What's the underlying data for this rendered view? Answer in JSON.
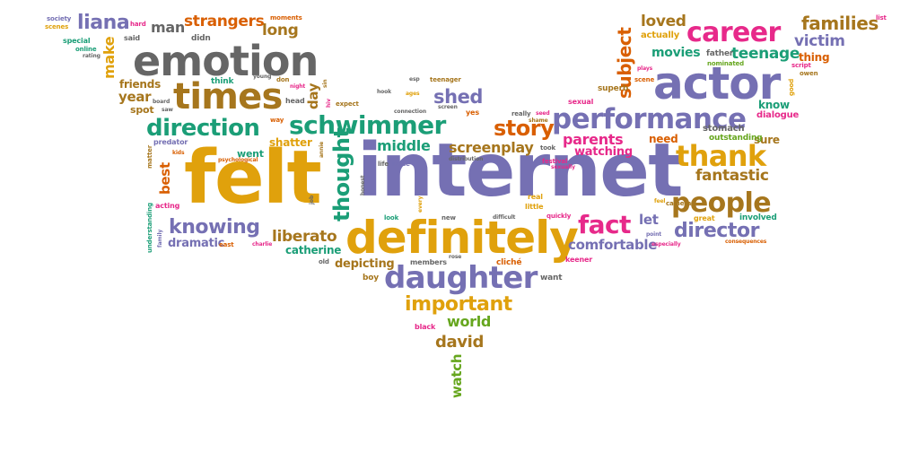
{
  "palette": {
    "gold": "#E0A10C",
    "slate": "#7570B3",
    "teal": "#1B9E77",
    "orange": "#D95F02",
    "pink": "#E7298A",
    "brown": "#A6761D",
    "gray": "#666666",
    "green": "#66A61E"
  },
  "words": [
    "internet",
    "felt",
    "definitely",
    "actor",
    "emotion",
    "times",
    "performance",
    "daughter",
    "career",
    "thank",
    "schwimmer",
    "people",
    "direction",
    "story",
    "fact",
    "knowing",
    "director",
    "thought",
    "important",
    "liana",
    "strangers",
    "families",
    "subject",
    "loved",
    "teenage",
    "victim",
    "movies",
    "long",
    "man",
    "middle",
    "screenplay",
    "parents",
    "liberato",
    "comfortable",
    "fantastic",
    "shed",
    "david",
    "watch",
    "make",
    "world",
    "year",
    "friends",
    "day",
    "best",
    "dramatic",
    "catherine",
    "depicting",
    "watching",
    "let",
    "need",
    "sure",
    "know",
    "thing",
    "shatter",
    "went",
    "stomach",
    "outstanding",
    "dialogue",
    "involved",
    "great",
    "members",
    "boy",
    "want",
    "black",
    "keener",
    "cliché",
    "sexual",
    "superb",
    "actually",
    "father",
    "nominated",
    "scene",
    "scenes",
    "society",
    "said",
    "special",
    "online",
    "rating",
    "didn",
    "think",
    "hard",
    "moments",
    "young",
    "don",
    "night",
    "head",
    "spot",
    "board",
    "saw",
    "expect",
    "teenager",
    "screen",
    "yes",
    "really",
    "seed",
    "shame",
    "predator",
    "matter",
    "kids",
    "acting",
    "understanding",
    "family",
    "psychological",
    "east",
    "charlie",
    "job",
    "annie",
    "life",
    "issue",
    "distribution",
    "festival",
    "sexually",
    "took",
    "real",
    "little",
    "look",
    "new",
    "difficult",
    "quickly",
    "especially",
    "point",
    "feel",
    "camera",
    "consequences",
    "old",
    "rose",
    "connection",
    "hiv",
    "plays",
    "script",
    "owen",
    "good",
    "list",
    "way",
    "sin",
    "honest",
    "every",
    "esp",
    "hook",
    "ages"
  ]
}
